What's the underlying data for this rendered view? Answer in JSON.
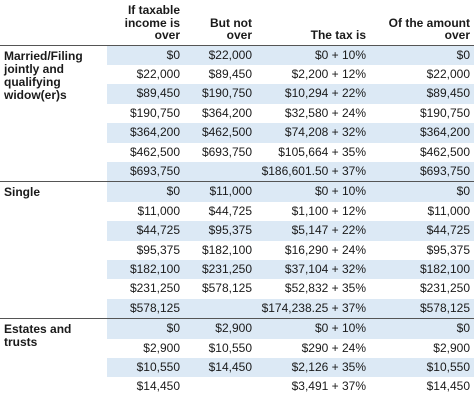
{
  "headers": [
    "",
    "If taxable income is over",
    "But not over",
    "The tax is",
    "Of the amount over"
  ],
  "sections": [
    {
      "label": "Married/Filing jointly and qualifying widow(er)s",
      "rows": [
        [
          "$0",
          "$22,000",
          "$0 + 10%",
          "$0"
        ],
        [
          "$22,000",
          "$89,450",
          "$2,200 + 12%",
          "$22,000"
        ],
        [
          "$89,450",
          "$190,750",
          "$10,294 + 22%",
          "$89,450"
        ],
        [
          "$190,750",
          "$364,200",
          "$32,580 + 24%",
          "$190,750"
        ],
        [
          "$364,200",
          "$462,500",
          "$74,208 + 32%",
          "$364,200"
        ],
        [
          "$462,500",
          "$693,750",
          "$105,664 + 35%",
          "$462,500"
        ],
        [
          "$693,750",
          "",
          "$186,601.50 + 37%",
          "$693,750"
        ]
      ]
    },
    {
      "label": "Single",
      "rows": [
        [
          "$0",
          "$11,000",
          "$0 + 10%",
          "$0"
        ],
        [
          "$11,000",
          "$44,725",
          "$1,100 + 12%",
          "$11,000"
        ],
        [
          "$44,725",
          "$95,375",
          "$5,147 + 22%",
          "$44,725"
        ],
        [
          "$95,375",
          "$182,100",
          "$16,290 + 24%",
          "$95,375"
        ],
        [
          "$182,100",
          "$231,250",
          "$37,104 + 32%",
          "$182,100"
        ],
        [
          "$231,250",
          "$578,125",
          "$52,832 + 35%",
          "$231,250"
        ],
        [
          "$578,125",
          "",
          "$174,238.25 + 37%",
          "$578,125"
        ]
      ]
    },
    {
      "label": "Estates and trusts",
      "rows": [
        [
          "$0",
          "$2,900",
          "$0 + 10%",
          "$0"
        ],
        [
          "$2,900",
          "$10,550",
          "$290 + 24%",
          "$2,900"
        ],
        [
          "$10,550",
          "$14,450",
          "$2,126 + 35%",
          "$10,550"
        ],
        [
          "$14,450",
          "",
          "$3,491 + 37%",
          "$14,450"
        ]
      ]
    }
  ]
}
